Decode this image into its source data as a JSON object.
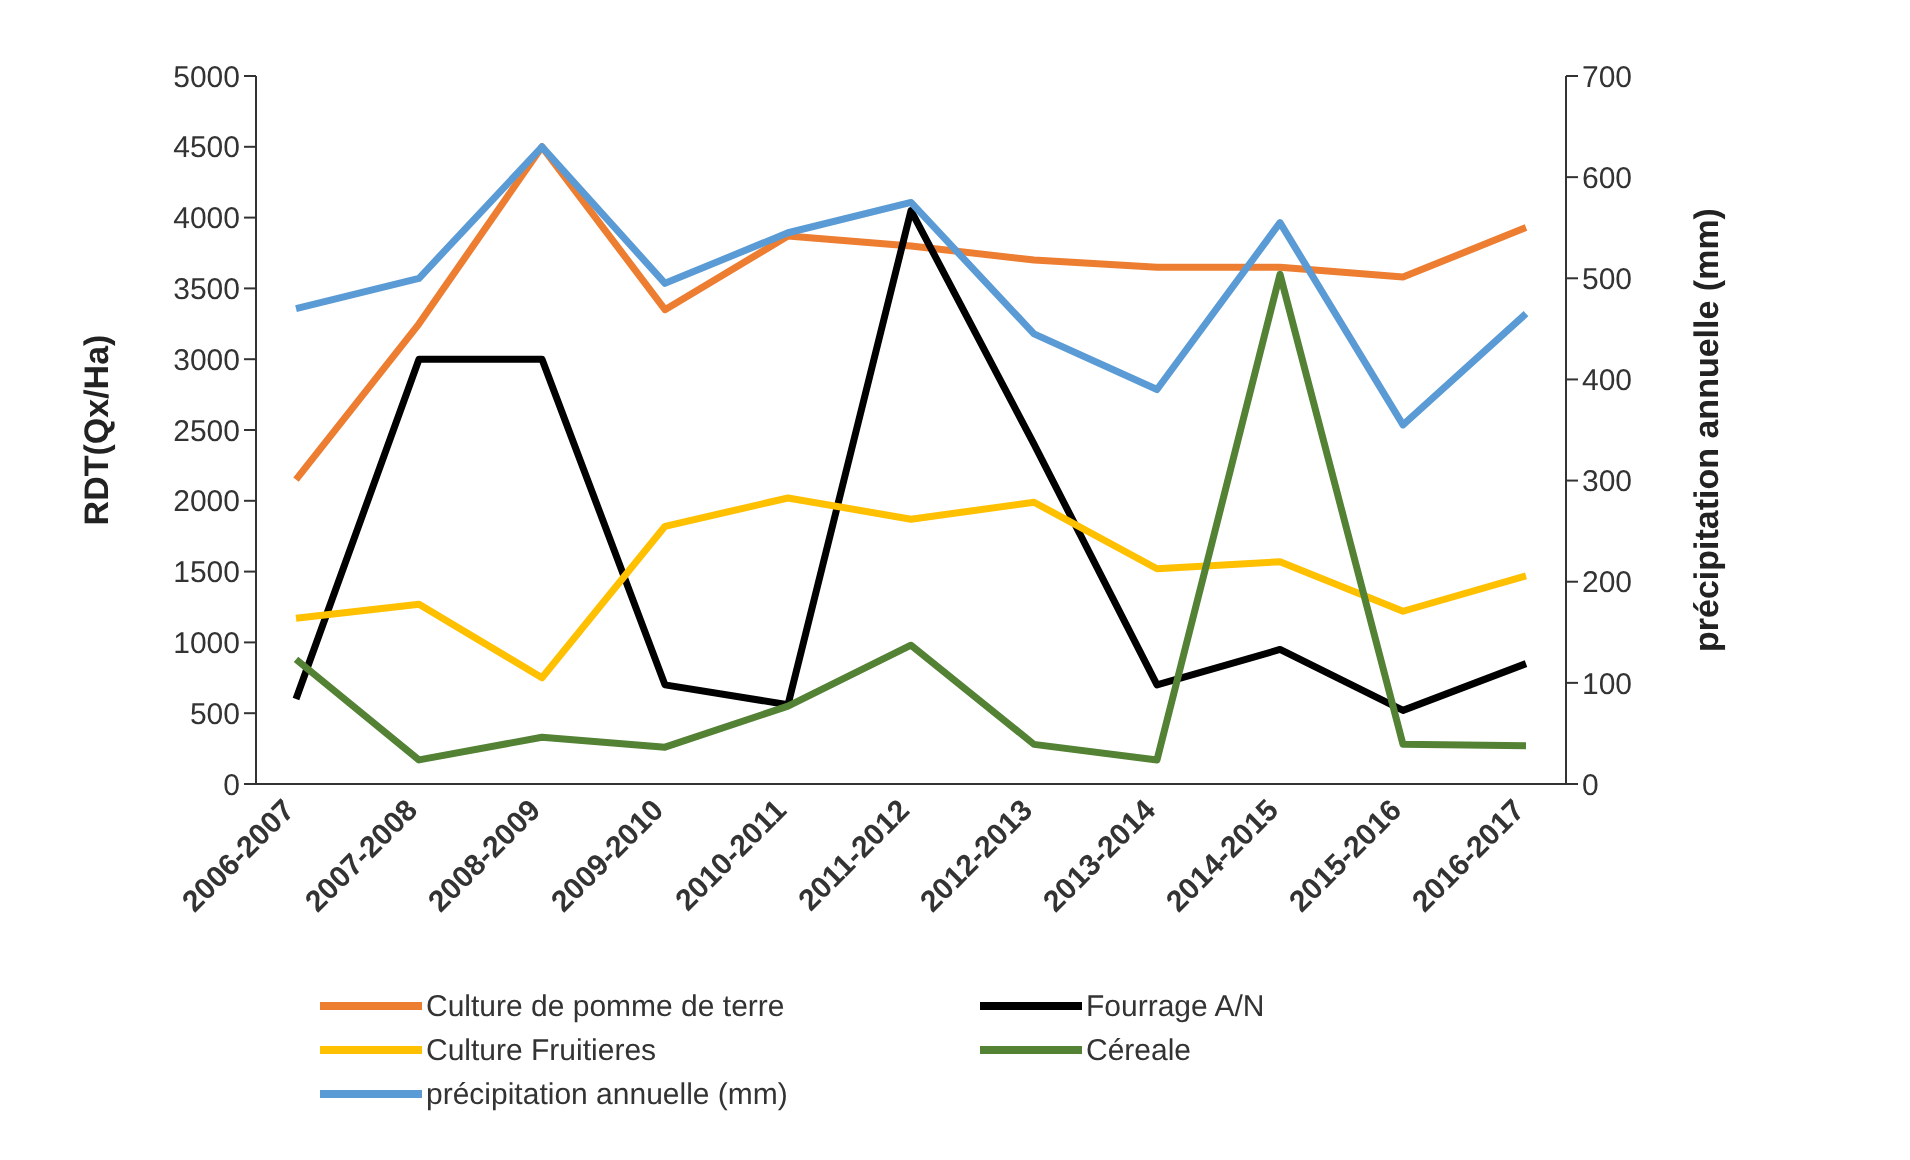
{
  "chart_data": {
    "type": "line",
    "ylabel": "RDT(Qx/Ha)",
    "y2label": "précipitation annuelle (mm)",
    "categories": [
      "2006-2007",
      "2007-2008",
      "2008-2009",
      "2009-2010",
      "2010-2011",
      "2011-2012",
      "2012-2013",
      "2013-2014",
      "2014-2015",
      "2015-2016",
      "2016-2017"
    ],
    "series": [
      {
        "name": "Culture de pomme de terre",
        "color": "#ed7d31",
        "values": [
          2150,
          3250,
          4500,
          3350,
          3870,
          3800,
          3700,
          3650,
          3650,
          3580,
          3930
        ]
      },
      {
        "name": "Fourrage A/N",
        "color": "#000000",
        "values": [
          600,
          3000,
          3000,
          700,
          560,
          4050,
          2400,
          700,
          950,
          520,
          850
        ]
      },
      {
        "name": "Culture Fruitieres",
        "color": "#ffc000",
        "values": [
          1170,
          1270,
          750,
          1820,
          2020,
          1870,
          1990,
          1520,
          1570,
          1220,
          1470
        ]
      },
      {
        "name": "Céreale",
        "color": "#548235",
        "values": [
          880,
          170,
          330,
          260,
          550,
          980,
          280,
          170,
          3600,
          280,
          270
        ]
      },
      {
        "name": "précipitation annuelle (mm)",
        "color": "#5b9bd5",
        "axis": "y2",
        "values": [
          470,
          500,
          630,
          495,
          545,
          575,
          445,
          390,
          555,
          355,
          465
        ]
      }
    ],
    "ylim": [
      0,
      5000
    ],
    "yticks": [
      0,
      500,
      1000,
      1500,
      2000,
      2500,
      3000,
      3500,
      4000,
      4500,
      5000
    ],
    "y2lim": [
      0,
      700
    ],
    "y2ticks": [
      0,
      100,
      200,
      300,
      400,
      500,
      600,
      700
    ],
    "grid": false,
    "legend": "bottom",
    "marker": "none",
    "line_style": "solid"
  }
}
